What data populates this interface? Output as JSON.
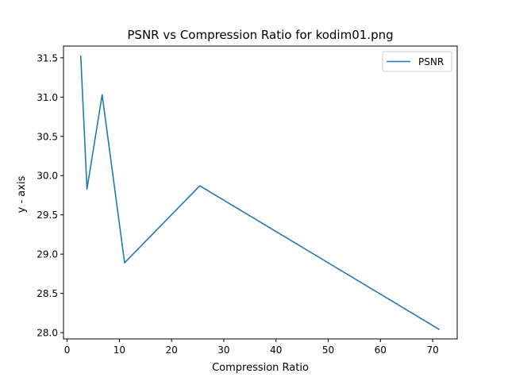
{
  "chart_data": {
    "type": "line",
    "title": "PSNR vs Compression Ratio for kodim01.png",
    "xlabel": "Compression Ratio",
    "ylabel": "y - axis",
    "xlim": [
      -0.7,
      74.7
    ],
    "ylim": [
      27.92,
      31.65
    ],
    "xticks": [
      0,
      10,
      20,
      30,
      40,
      50,
      60,
      70
    ],
    "yticks": [
      28.0,
      28.5,
      29.0,
      29.5,
      30.0,
      30.5,
      31.0,
      31.5
    ],
    "ytick_labels": [
      "28.0",
      "28.5",
      "29.0",
      "29.5",
      "30.0",
      "30.5",
      "31.0",
      "31.5"
    ],
    "grid": false,
    "legend_position": "top-right",
    "series": [
      {
        "name": "PSNR",
        "color": "#1f77b4",
        "points": [
          {
            "x": 2.6,
            "y": 31.53
          },
          {
            "x": 3.8,
            "y": 29.83
          },
          {
            "x": 6.7,
            "y": 31.03
          },
          {
            "x": 11.0,
            "y": 28.89
          },
          {
            "x": 25.4,
            "y": 29.87
          },
          {
            "x": 71.3,
            "y": 28.04
          }
        ]
      }
    ]
  }
}
